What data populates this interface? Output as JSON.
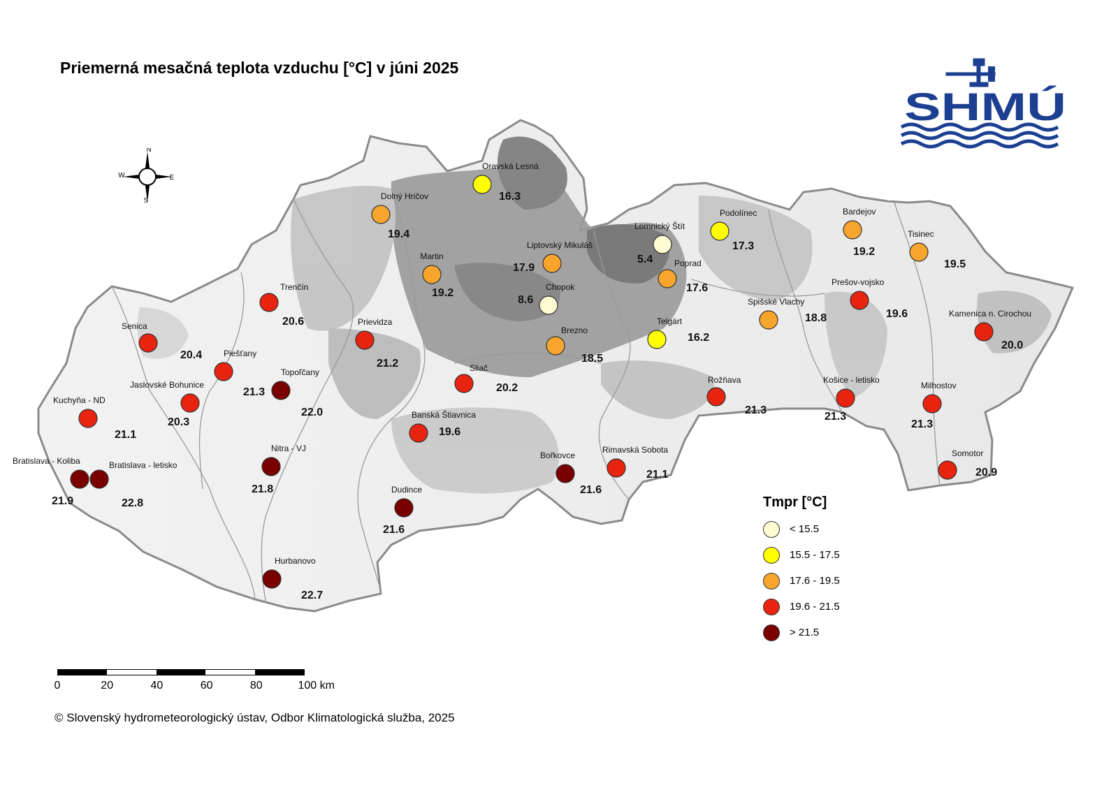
{
  "title": "Priemerná mesačná teplota vzduchu [°C] v júni 2025",
  "compass": {
    "n": "N",
    "s": "S",
    "e": "E",
    "w": "W"
  },
  "logo": {
    "text": "SHMÚ",
    "color": "#1d3f91"
  },
  "legend": {
    "title": "Tmpr [°C]",
    "classes": [
      {
        "label": "< 15.5",
        "color": "#fffbd2"
      },
      {
        "label": "15.5 - 17.5",
        "color": "#ffff00"
      },
      {
        "label": "17.6 - 19.5",
        "color": "#f8a52d"
      },
      {
        "label": "19.6 - 21.5",
        "color": "#e8230f"
      },
      {
        "label": "> 21.5",
        "color": "#7a0000"
      }
    ]
  },
  "scale": {
    "ticks": [
      "0",
      "20",
      "40",
      "60",
      "80",
      "100 km"
    ]
  },
  "copyright": "© Slovenský hydrometeorologický ústav, Odbor Klimatologická služba, 2025",
  "stations": [
    {
      "name": "Oravská Lesná",
      "value": "16.3",
      "class": 1
    },
    {
      "name": "Dolný Hričov",
      "value": "19.4",
      "class": 2
    },
    {
      "name": "Martin",
      "value": "19.2",
      "class": 2
    },
    {
      "name": "Liptovský Mikuláš",
      "value": "17.9",
      "class": 2
    },
    {
      "name": "Chopok",
      "value": "8.6",
      "class": 0
    },
    {
      "name": "Lomnický Štít",
      "value": "5.4",
      "class": 0
    },
    {
      "name": "Podolínec",
      "value": "17.3",
      "class": 1
    },
    {
      "name": "Poprad",
      "value": "17.6",
      "class": 2
    },
    {
      "name": "Bardejov",
      "value": "19.2",
      "class": 2
    },
    {
      "name": "Tisinec",
      "value": "19.5",
      "class": 2
    },
    {
      "name": "Prešov-vojsko",
      "value": "19.6",
      "class": 3
    },
    {
      "name": "Spišské Vlachy",
      "value": "18.8",
      "class": 2
    },
    {
      "name": "Telgárt",
      "value": "16.2",
      "class": 1
    },
    {
      "name": "Brezno",
      "value": "18.5",
      "class": 2
    },
    {
      "name": "Kamenica n. Cirochou",
      "value": "20.0",
      "class": 3
    },
    {
      "name": "Trenčín",
      "value": "20.6",
      "class": 3
    },
    {
      "name": "Senica",
      "value": "20.4",
      "class": 3
    },
    {
      "name": "Piešťany",
      "value": "21.3",
      "class": 3
    },
    {
      "name": "Prievidza",
      "value": "21.2",
      "class": 3
    },
    {
      "name": "Topoľčany",
      "value": "22.0",
      "class": 4
    },
    {
      "name": "Jaslovské Bohunice",
      "value": "20.3",
      "class": 3
    },
    {
      "name": "Kuchyňa - ND",
      "value": "21.1",
      "class": 3
    },
    {
      "name": "Sliač",
      "value": "20.2",
      "class": 3
    },
    {
      "name": "Banská Štiavnica",
      "value": "19.6",
      "class": 3
    },
    {
      "name": "Rožňava",
      "value": "21.3",
      "class": 3
    },
    {
      "name": "Košice - letisko",
      "value": "21.3",
      "class": 3
    },
    {
      "name": "Milhostov",
      "value": "21.3",
      "class": 3
    },
    {
      "name": "Nitra - VJ",
      "value": "21.8",
      "class": 4
    },
    {
      "name": "Bratislava - Koliba",
      "value": "21.9",
      "class": 4
    },
    {
      "name": "Bratislava - letisko",
      "value": "22.8",
      "class": 4
    },
    {
      "name": "Bořkovce",
      "value": "21.6",
      "class": 4
    },
    {
      "name": "Rimavská Sobota",
      "value": "21.1",
      "class": 3
    },
    {
      "name": "Somotor",
      "value": "20.9",
      "class": 3
    },
    {
      "name": "Dudince",
      "value": "21.6",
      "class": 4
    },
    {
      "name": "Hurbanovo",
      "value": "22.7",
      "class": 4
    }
  ]
}
